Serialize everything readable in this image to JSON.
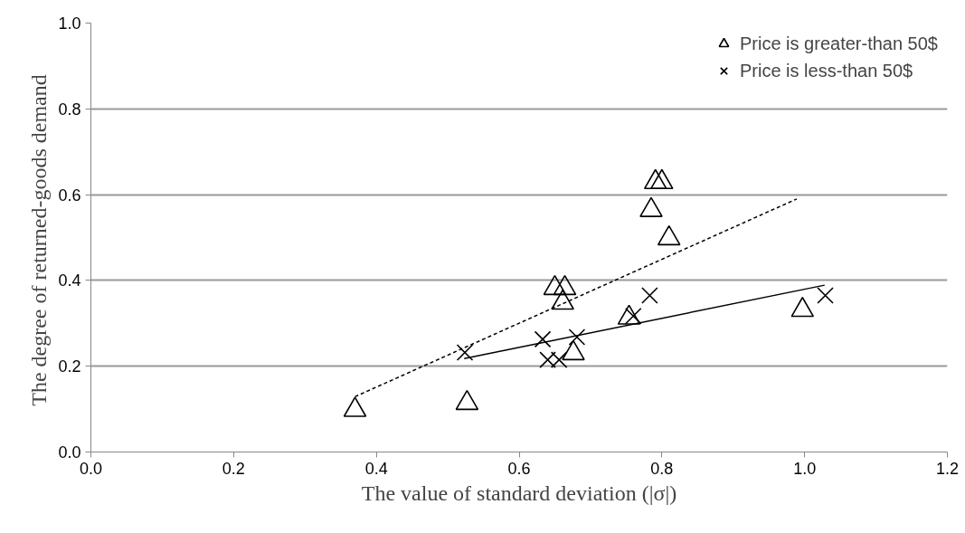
{
  "chart_data": {
    "type": "scatter",
    "xlabel": "The value of standard deviation (|σ|)",
    "ylabel": "The degree of returned-goods  demand",
    "xlim": [
      0,
      1.2
    ],
    "ylim": [
      0,
      1
    ],
    "xticks": [
      {
        "value": 0,
        "label": "0.0"
      },
      0.2,
      0.4,
      0.6,
      0.8,
      {
        "value": 1,
        "label": "1.0"
      },
      1.2
    ],
    "yticks": [
      {
        "value": 0,
        "label": "0.0"
      },
      0.2,
      0.4,
      0.6,
      0.8,
      {
        "value": 1,
        "label": "1.0"
      }
    ],
    "grid": "y",
    "legend": "top right",
    "series": [
      {
        "name": "Price is greater-than 50$",
        "color": "#000000",
        "marker": "triangle",
        "x": [
          0.37,
          0.527,
          0.65,
          0.664,
          0.661,
          0.754,
          0.676,
          0.785,
          0.81,
          0.997,
          0.791,
          0.8
        ],
        "values": [
          0.098,
          0.114,
          0.382,
          0.382,
          0.348,
          0.313,
          0.23,
          0.564,
          0.498,
          0.331,
          0.629,
          0.629
        ]
      },
      {
        "name": "Price is less-than 50$",
        "color": "#000000",
        "marker": "cross",
        "x": [
          0.524,
          0.633,
          0.64,
          0.656,
          0.681,
          0.76,
          0.783,
          1.029
        ],
        "values": [
          0.232,
          0.263,
          0.215,
          0.215,
          0.268,
          0.317,
          0.365,
          0.365
        ]
      },
      {
        "type": "line",
        "color": "#000000",
        "line_style": "dashed",
        "x": [
          0.37,
          0.989
        ],
        "values": [
          0.129,
          0.59
        ]
      },
      {
        "type": "line",
        "color": "#000000",
        "line_style": "solid",
        "x": [
          0.523,
          1.028
        ],
        "values": [
          0.218,
          0.389
        ]
      }
    ]
  }
}
